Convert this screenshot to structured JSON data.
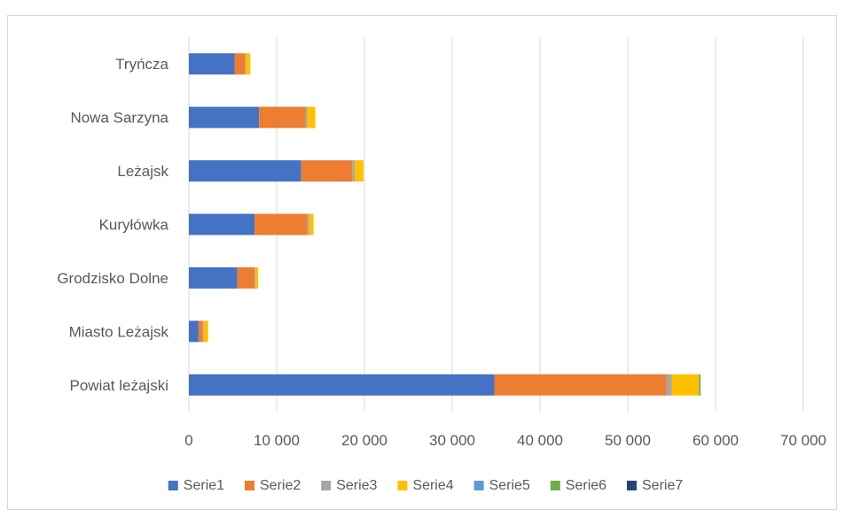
{
  "chart_data": {
    "type": "bar",
    "orientation": "horizontal",
    "stacked": true,
    "title": "",
    "xlabel": "",
    "ylabel": "",
    "xlim": [
      0,
      70000
    ],
    "x_ticks": [
      0,
      10000,
      20000,
      30000,
      40000,
      50000,
      60000,
      70000
    ],
    "x_tick_labels": [
      "0",
      "10 000",
      "20 000",
      "30 000",
      "40 000",
      "50 000",
      "60 000",
      "70 000"
    ],
    "grid": true,
    "legend_position": "bottom",
    "categories": [
      "Powiat leżajski",
      "Miasto Leżajsk",
      "Grodzisko Dolne",
      "Kuryłówka",
      "Leżajsk",
      "Nowa Sarzyna",
      "Tryńcza"
    ],
    "series": [
      {
        "name": "Serie1",
        "color": "#4472C4",
        "values": [
          34800,
          1100,
          5500,
          7500,
          12800,
          8000,
          5200
        ]
      },
      {
        "name": "Serie2",
        "color": "#ED7D31",
        "values": [
          19600,
          500,
          2000,
          6000,
          5800,
          5300,
          1200
        ]
      },
      {
        "name": "Serie3",
        "color": "#A5A5A5",
        "values": [
          600,
          100,
          100,
          200,
          300,
          200,
          100
        ]
      },
      {
        "name": "Serie4",
        "color": "#FFC000",
        "values": [
          3100,
          500,
          300,
          500,
          1000,
          900,
          500
        ]
      },
      {
        "name": "Serie5",
        "color": "#5B9BD5",
        "values": [
          0,
          0,
          0,
          0,
          0,
          0,
          0
        ]
      },
      {
        "name": "Serie6",
        "color": "#70AD47",
        "values": [
          200,
          0,
          0,
          0,
          0,
          0,
          0
        ]
      },
      {
        "name": "Serie7",
        "color": "#264478",
        "values": [
          0,
          0,
          0,
          0,
          0,
          0,
          0
        ]
      }
    ]
  }
}
